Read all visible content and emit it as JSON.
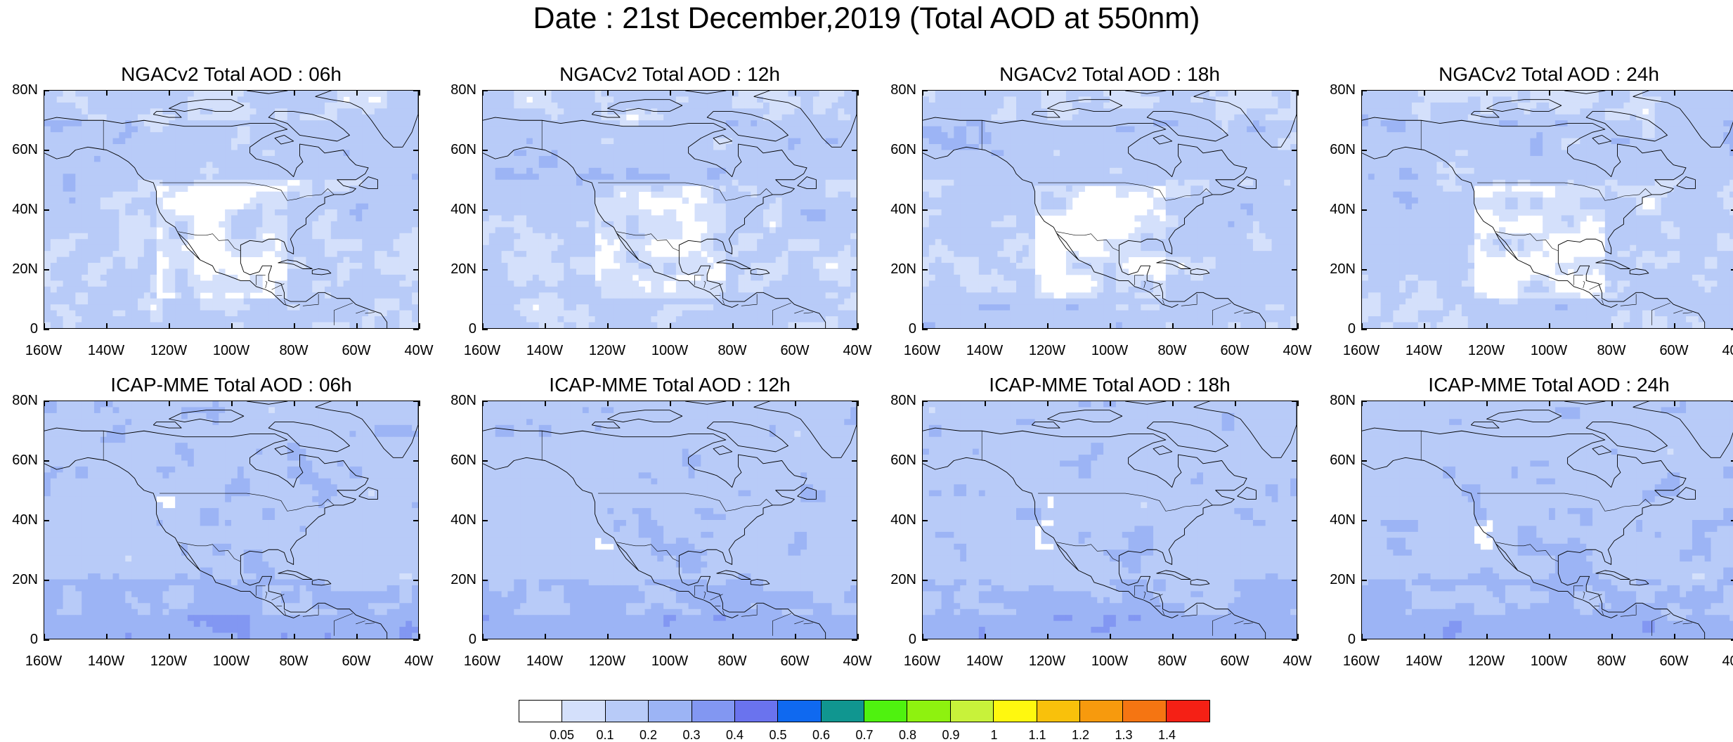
{
  "title": "Date : 21st December,2019 (Total AOD at 550nm)",
  "panels": [
    {
      "title": "NGACv2 Total AOD : 06h",
      "model": "NGACv2",
      "hour": "06h"
    },
    {
      "title": "NGACv2 Total AOD : 12h",
      "model": "NGACv2",
      "hour": "12h"
    },
    {
      "title": "NGACv2 Total AOD : 18h",
      "model": "NGACv2",
      "hour": "18h"
    },
    {
      "title": "NGACv2 Total AOD : 24h",
      "model": "NGACv2",
      "hour": "24h"
    },
    {
      "title": "ICAP-MME Total AOD : 06h",
      "model": "ICAP-MME",
      "hour": "06h"
    },
    {
      "title": "ICAP-MME Total AOD : 12h",
      "model": "ICAP-MME",
      "hour": "12h"
    },
    {
      "title": "ICAP-MME Total AOD : 18h",
      "model": "ICAP-MME",
      "hour": "18h"
    },
    {
      "title": "ICAP-MME Total AOD : 24h",
      "model": "ICAP-MME",
      "hour": "24h"
    }
  ],
  "lat_ticks": [
    "80N",
    "60N",
    "40N",
    "20N",
    "0"
  ],
  "lon_ticks": [
    "160W",
    "140W",
    "120W",
    "100W",
    "80W",
    "60W",
    "40W"
  ],
  "colorbar": {
    "levels": [
      "0.05",
      "0.1",
      "0.2",
      "0.3",
      "0.4",
      "0.5",
      "0.6",
      "0.7",
      "0.8",
      "0.9",
      "1",
      "1.1",
      "1.2",
      "1.3",
      "1.4"
    ],
    "colors": [
      "#ffffff",
      "#d4e0fb",
      "#b8cbf8",
      "#9cb4f5",
      "#8297f2",
      "#6a73ee",
      "#0f69f0",
      "#109690",
      "#4ff20f",
      "#8ef20f",
      "#c8f23a",
      "#fff80f",
      "#f9c10b",
      "#f79a0d",
      "#f57512",
      "#f52015"
    ]
  }
}
